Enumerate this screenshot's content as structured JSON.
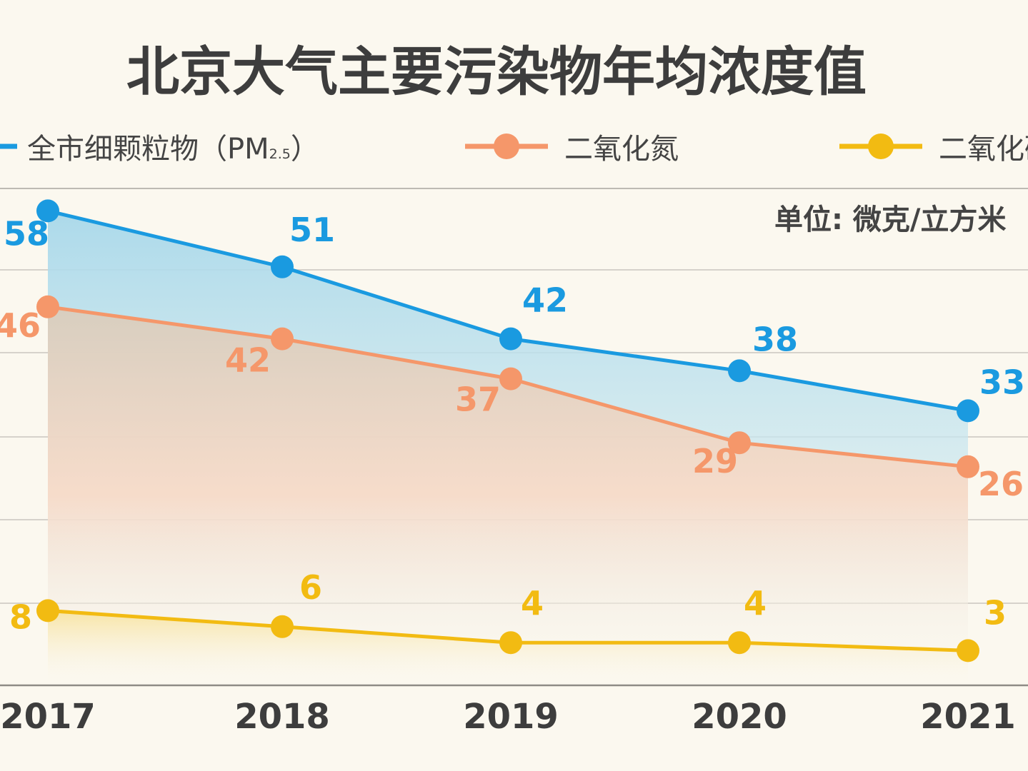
{
  "chart_data": {
    "type": "line",
    "title": "北京大气主要污染物年均浓度值",
    "unit_label": "单位: 微克/立方米",
    "categories": [
      "2017",
      "2018",
      "2019",
      "2020",
      "2021"
    ],
    "series": [
      {
        "name_main": "全市细颗粒物（PM",
        "name_sub": "2.5",
        "name_end": "）",
        "values": [
          58,
          51,
          42,
          38,
          33
        ],
        "color": "#1a9ae0",
        "area": "#aad7ea"
      },
      {
        "name_main": "二氧化氮",
        "values": [
          46,
          42,
          37,
          29,
          26
        ],
        "color": "#f5976a",
        "area": "#fbd7c2"
      },
      {
        "name_main": "二氧化硫",
        "values": [
          8,
          6,
          4,
          4,
          3
        ],
        "color": "#f2bb12",
        "area": "#f8e6a6"
      }
    ],
    "grid": true,
    "legend_position": "top"
  }
}
